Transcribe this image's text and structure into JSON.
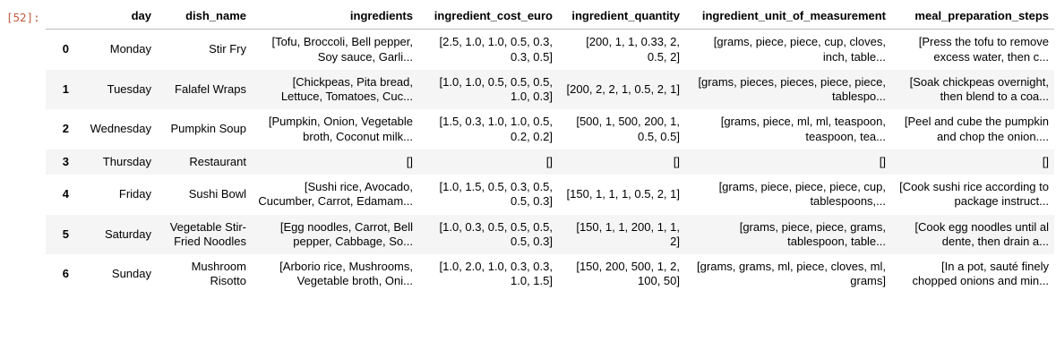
{
  "output_prompt": "[52]:",
  "colors": {
    "prompt_color": "#bf5b3e",
    "stripe_color": "#f5f5f5",
    "header_border_color": "#bdbdbd",
    "text_color": "#000000",
    "background_color": "#ffffff"
  },
  "table": {
    "index_header": "",
    "columns": [
      "day",
      "dish_name",
      "ingredients",
      "ingredient_cost_euro",
      "ingredient_quantity",
      "ingredient_unit_of_measurement",
      "meal_preparation_steps"
    ],
    "rows": [
      {
        "index": "0",
        "cells": [
          "Monday",
          "Stir Fry",
          "[Tofu, Broccoli, Bell pepper, Soy sauce, Garli...",
          "[2.5, 1.0, 1.0, 0.5, 0.3, 0.3, 0.5]",
          "[200, 1, 1, 0.33, 2, 0.5, 2]",
          "[grams, piece, piece, cup, cloves, inch, table...",
          "[Press the tofu to remove excess water, then c..."
        ]
      },
      {
        "index": "1",
        "cells": [
          "Tuesday",
          "Falafel Wraps",
          "[Chickpeas, Pita bread, Lettuce, Tomatoes, Cuc...",
          "[1.0, 1.0, 0.5, 0.5, 0.5, 1.0, 0.3]",
          "[200, 2, 2, 1, 0.5, 2, 1]",
          "[grams, pieces, pieces, piece, piece, tablespo...",
          "[Soak chickpeas overnight, then blend to a coa..."
        ]
      },
      {
        "index": "2",
        "cells": [
          "Wednesday",
          "Pumpkin Soup",
          "[Pumpkin, Onion, Vegetable broth, Coconut milk...",
          "[1.5, 0.3, 1.0, 1.0, 0.5, 0.2, 0.2]",
          "[500, 1, 500, 200, 1, 0.5, 0.5]",
          "[grams, piece, ml, ml, teaspoon, teaspoon, tea...",
          "[Peel and cube the pumpkin and chop the onion...."
        ]
      },
      {
        "index": "3",
        "cells": [
          "Thursday",
          "Restaurant",
          "[]",
          "[]",
          "[]",
          "[]",
          "[]"
        ]
      },
      {
        "index": "4",
        "cells": [
          "Friday",
          "Sushi Bowl",
          "[Sushi rice, Avocado, Cucumber, Carrot, Edamam...",
          "[1.0, 1.5, 0.5, 0.3, 0.5, 0.5, 0.3]",
          "[150, 1, 1, 1, 0.5, 2, 1]",
          "[grams, piece, piece, piece, cup, tablespoons,...",
          "[Cook sushi rice according to package instruct..."
        ]
      },
      {
        "index": "5",
        "cells": [
          "Saturday",
          "Vegetable Stir-Fried Noodles",
          "[Egg noodles, Carrot, Bell pepper, Cabbage, So...",
          "[1.0, 0.3, 0.5, 0.5, 0.5, 0.5, 0.3]",
          "[150, 1, 1, 200, 1, 1, 2]",
          "[grams, piece, piece, grams, tablespoon, table...",
          "[Cook egg noodles until al dente, then drain a..."
        ]
      },
      {
        "index": "6",
        "cells": [
          "Sunday",
          "Mushroom Risotto",
          "[Arborio rice, Mushrooms, Vegetable broth, Oni...",
          "[1.0, 2.0, 1.0, 0.3, 0.3, 1.0, 1.5]",
          "[150, 200, 500, 1, 2, 100, 50]",
          "[grams, grams, ml, piece, cloves, ml, grams]",
          "[In a pot, sauté finely chopped onions and min..."
        ]
      }
    ]
  }
}
